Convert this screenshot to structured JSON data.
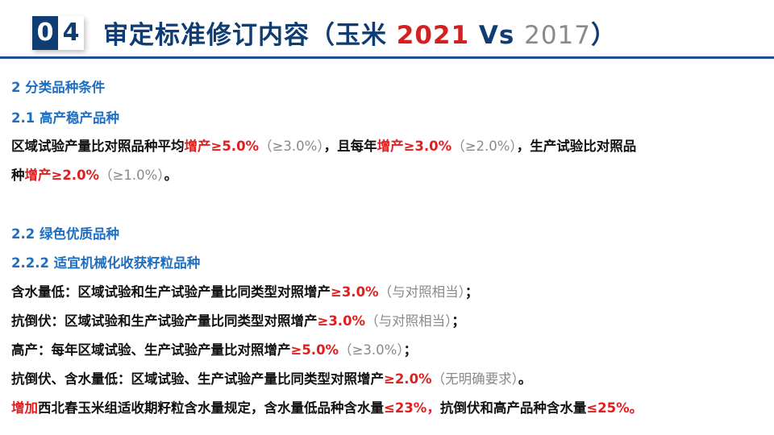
{
  "header": {
    "badge_first": "0",
    "badge_second": "4",
    "title_main": "审定标准修订内容（玉米 ",
    "title_new": "2021",
    "title_vs": " Vs ",
    "title_old": "2017",
    "title_close": "）"
  },
  "colors": {
    "title": "#0f3d73",
    "heading": "#1f6fc0",
    "highlight": "#e02020",
    "old_value": "#8a8a8a"
  },
  "content": {
    "lines": [
      {
        "segments": [
          {
            "text": "2 分类品种条件",
            "style": "h"
          }
        ]
      },
      {
        "segments": [
          {
            "text": "2.1  高产稳产品种",
            "style": "h"
          }
        ]
      },
      {
        "segments": [
          {
            "text": "区域试验产量比对照品种平均",
            "style": ""
          },
          {
            "text": "增产≥5.0%",
            "style": "red"
          },
          {
            "text": "（≥3.0%）",
            "style": "gray"
          },
          {
            "text": "，且每年",
            "style": ""
          },
          {
            "text": "增产≥3.0%",
            "style": "red"
          },
          {
            "text": "（≥2.0%）",
            "style": "gray"
          },
          {
            "text": "，生产试验比对照品",
            "style": ""
          }
        ]
      },
      {
        "segments": [
          {
            "text": "种",
            "style": ""
          },
          {
            "text": "增产≥2.0%",
            "style": "red"
          },
          {
            "text": "（≥1.0%）",
            "style": "gray"
          },
          {
            "text": "。",
            "style": ""
          }
        ]
      },
      {
        "segments": [
          {
            "text": "2.2  绿色优质品种",
            "style": "h"
          }
        ]
      },
      {
        "segments": [
          {
            "text": "2.2.2  适宜机械化收获籽粒品种",
            "style": "h"
          }
        ]
      },
      {
        "segments": [
          {
            "text": "含水量低：区域试验和生产试验产量比同类型对照增产",
            "style": ""
          },
          {
            "text": "≥3.0%",
            "style": "red"
          },
          {
            "text": "（与对照相当）",
            "style": "gray"
          },
          {
            "text": "；",
            "style": ""
          }
        ]
      },
      {
        "segments": [
          {
            "text": "抗倒伏：区域试验和生产试验产量比同类型对照增产",
            "style": ""
          },
          {
            "text": "≥3.0%",
            "style": "red"
          },
          {
            "text": "（与对照相当）",
            "style": "gray"
          },
          {
            "text": "；",
            "style": ""
          }
        ]
      },
      {
        "segments": [
          {
            "text": "高产：每年区域试验、生产试验产量比对照增产",
            "style": ""
          },
          {
            "text": "≥5.0%",
            "style": "red"
          },
          {
            "text": "（≥3.0%）",
            "style": "gray"
          },
          {
            "text": "；",
            "style": ""
          }
        ]
      },
      {
        "segments": [
          {
            "text": "抗倒伏、含水量低：区域试验、生产试验产量比同类型对照增产",
            "style": ""
          },
          {
            "text": "≥2.0%",
            "style": "red"
          },
          {
            "text": "（无明确要求）",
            "style": "gray"
          },
          {
            "text": "。",
            "style": ""
          }
        ]
      },
      {
        "segments": [
          {
            "text": "增加",
            "style": "red"
          },
          {
            "text": "西北春玉米组适收期籽粒含水量规定，含水量低品种含水量",
            "style": ""
          },
          {
            "text": "≤23%，",
            "style": "red"
          },
          {
            "text": "抗倒伏和高产品种含水量",
            "style": ""
          },
          {
            "text": "≤25%。",
            "style": "red"
          }
        ]
      }
    ]
  }
}
